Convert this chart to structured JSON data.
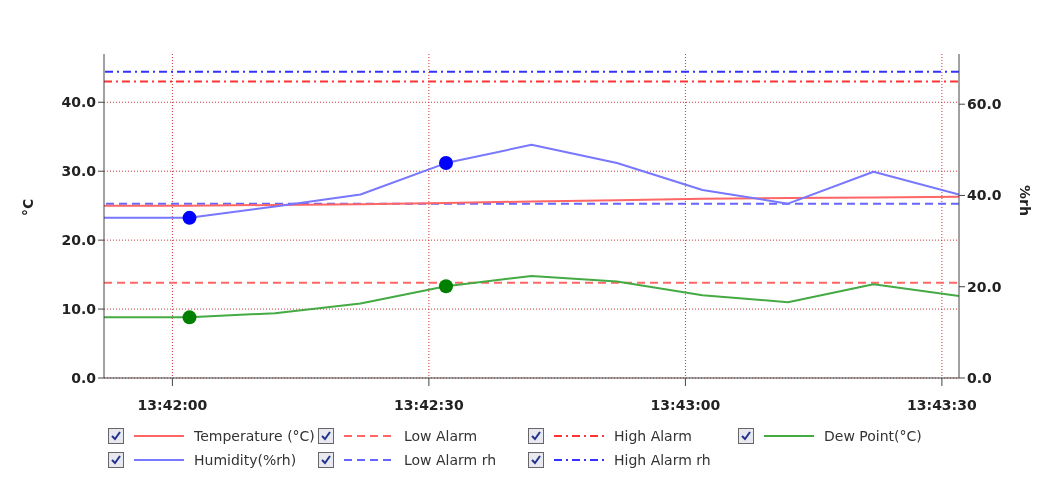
{
  "chart_data": {
    "type": "line",
    "ylabel": "°C",
    "y2label": "%rh",
    "x": [
      13.697778,
      13.700556,
      13.703333,
      13.706111,
      13.708889,
      13.711667,
      13.714444,
      13.717222,
      13.72,
      13.722778,
      13.725556
    ],
    "xlim": [
      13.697778,
      13.725556
    ],
    "xticks": [
      {
        "value": 13.7,
        "label": "13:42:00"
      },
      {
        "value": 13.708333,
        "label": "13:42:30"
      },
      {
        "value": 13.716667,
        "label": "13:43:00"
      },
      {
        "value": 13.725,
        "label": "13:43:30"
      }
    ],
    "ylim": [
      0,
      47
    ],
    "yticks": [
      {
        "value": 0,
        "label": "0.0"
      },
      {
        "value": 10,
        "label": "10.0"
      },
      {
        "value": 20,
        "label": "20.0"
      },
      {
        "value": 30,
        "label": "30.0"
      },
      {
        "value": 40,
        "label": "40.0"
      }
    ],
    "y2lim": [
      0,
      71
    ],
    "y2ticks": [
      {
        "value": 0,
        "label": "0.0"
      },
      {
        "value": 20,
        "label": "20.0"
      },
      {
        "value": 40,
        "label": "40.0"
      },
      {
        "value": 60,
        "label": "60.0"
      }
    ],
    "series": [
      {
        "name": "Temperature (°C)",
        "color": "#ff6666",
        "values": [
          25.0,
          25.0,
          25.1,
          25.2,
          25.4,
          25.6,
          25.8,
          26.0,
          26.1,
          26.2,
          26.3
        ]
      },
      {
        "name": "Dew Point(°C)",
        "color": "#44aa44",
        "values": [
          8.8,
          8.8,
          9.4,
          10.8,
          13.3,
          14.8,
          14.0,
          12.0,
          11.0,
          13.6,
          11.9
        ]
      },
      {
        "name": "Humidity(%rh)",
        "color": "#7777ff",
        "axis": "y2",
        "values": [
          35.1,
          35.1,
          37.6,
          40.2,
          47.1,
          51.1,
          47.1,
          41.2,
          38.2,
          45.2,
          40.2
        ]
      },
      {
        "type": "scatter",
        "color": "#0000ff",
        "axis": "y2",
        "marker": "circle",
        "values": [
          null,
          35.1,
          null,
          null,
          47.1,
          null,
          null,
          null,
          null,
          null,
          null
        ]
      },
      {
        "type": "scatter",
        "color": "#008000",
        "marker": "circle",
        "values": [
          null,
          8.8,
          null,
          null,
          13.3,
          null,
          null,
          null,
          null,
          null,
          null
        ]
      }
    ],
    "ref_lines": [
      {
        "axis": "y",
        "value": 13.8,
        "label": "Low Alarm",
        "color": "#ff6666",
        "line_style": "dashed"
      },
      {
        "axis": "y",
        "value": 43.0,
        "label": "High Alarm",
        "color": "#ff3333",
        "line_style": "dashdot"
      },
      {
        "axis": "y2",
        "value": 38.2,
        "label": "Low Alarm rh",
        "color": "#6666ff",
        "line_style": "dashed"
      },
      {
        "axis": "y2",
        "value": 67.1,
        "label": "High Alarm rh",
        "color": "#3333ff",
        "line_style": "dashdot"
      }
    ],
    "grid": true,
    "marker": "none",
    "legend": "bottom"
  }
}
